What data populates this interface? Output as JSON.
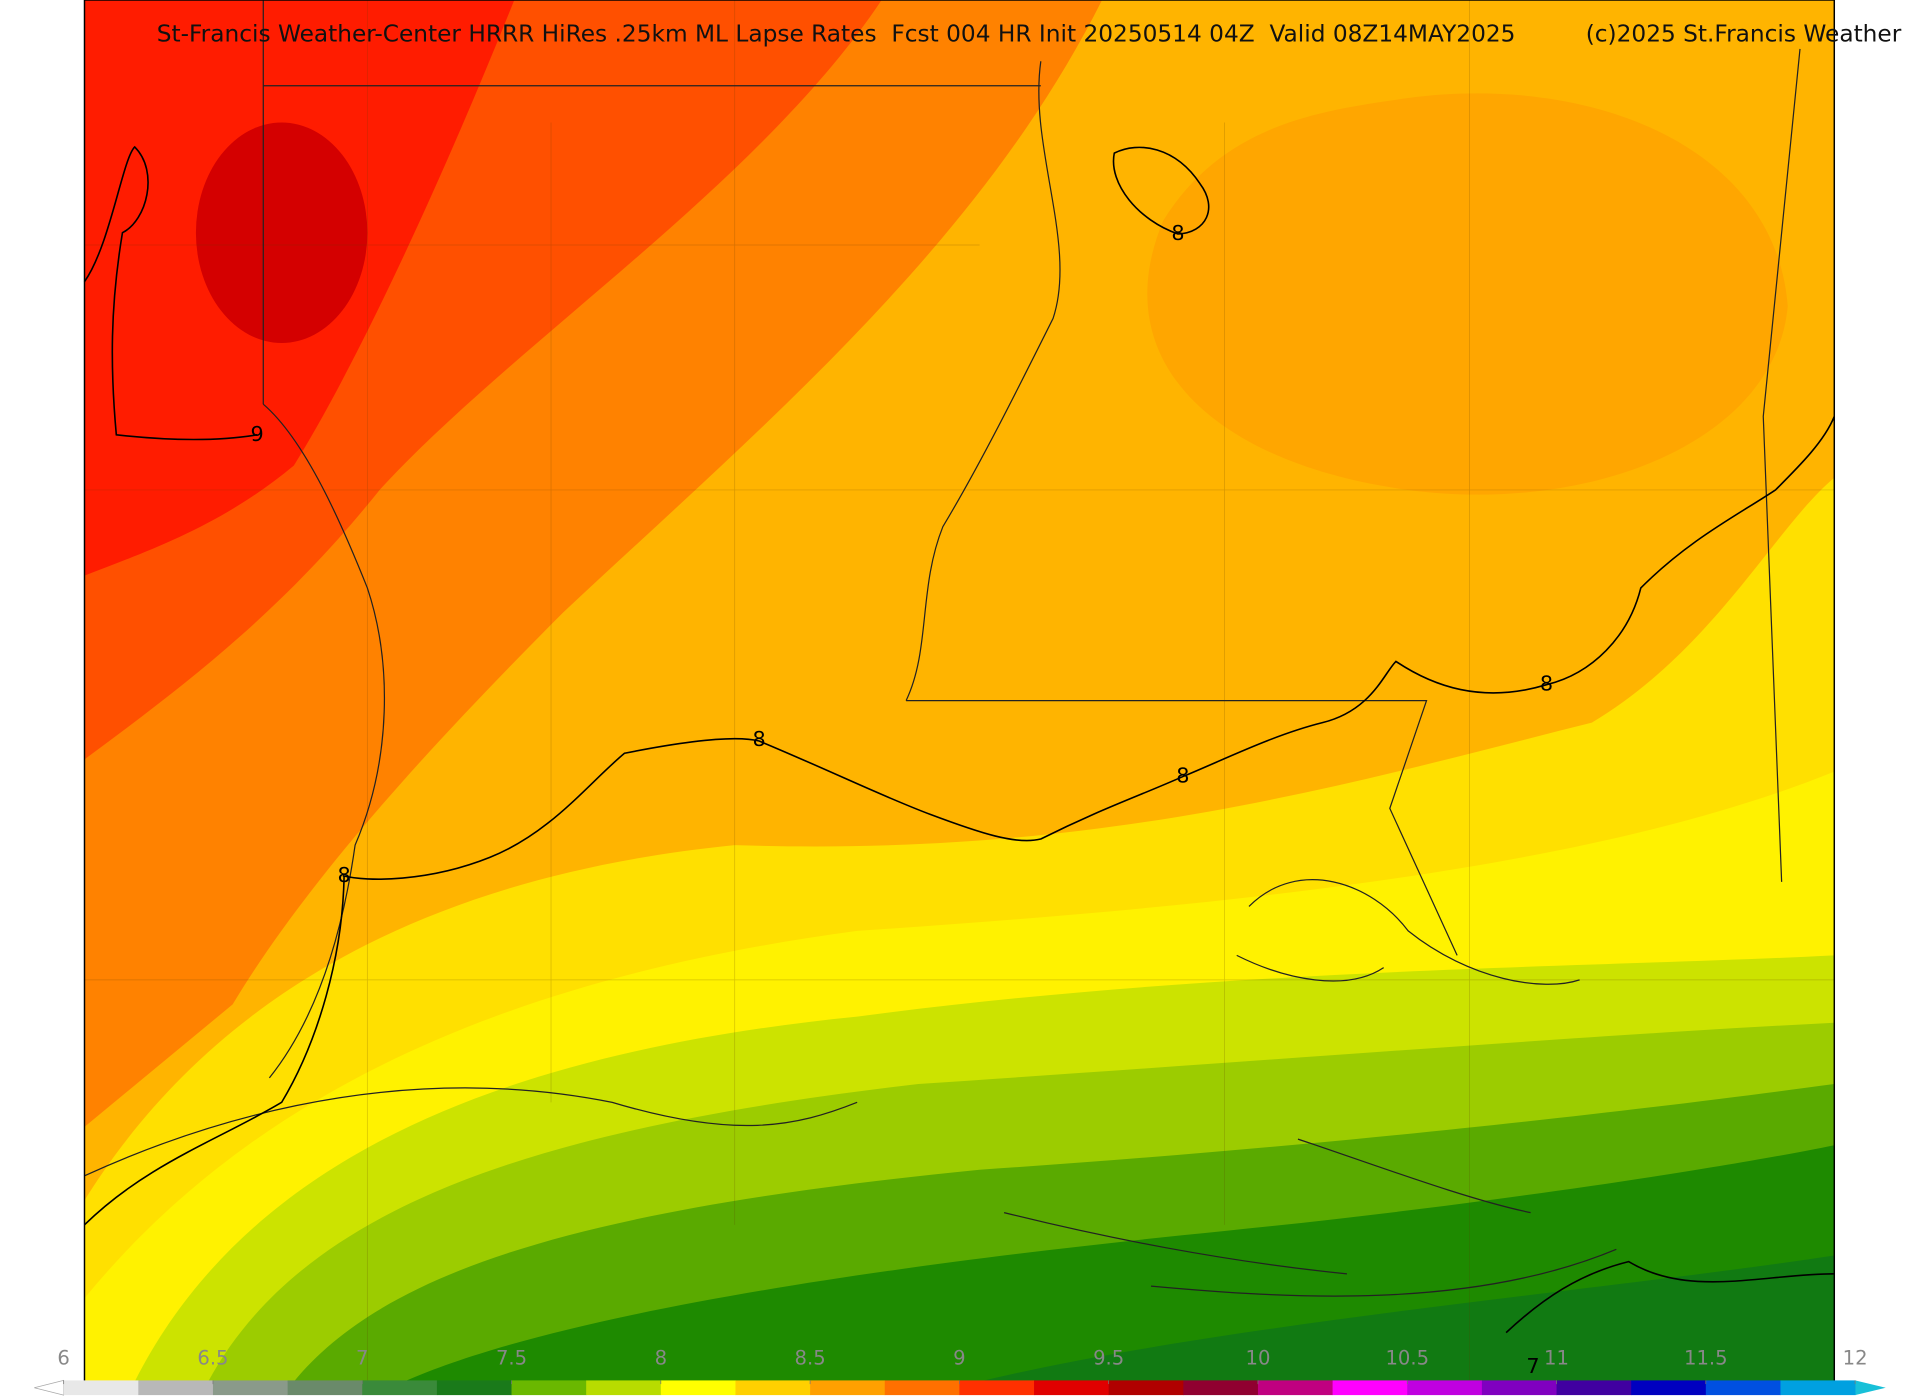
{
  "header": {
    "title": "St-Francis Weather-Center HRRR HiRes .25km ML Lapse Rates  Fcst 004 HR Init 20250514 04Z  Valid 08Z14MAY2025",
    "copyright": "(c)2025 St.Francis Weather"
  },
  "contour_labels": [
    8,
    9,
    8,
    8,
    8,
    8,
    7
  ],
  "colorbar": {
    "ticks": [
      6,
      6.5,
      7,
      7.5,
      8,
      8.5,
      9,
      9.5,
      10,
      10.5,
      11,
      11.5,
      12
    ],
    "colors": [
      "#e8e8e8",
      "#b8b8b8",
      "#8a9a8a",
      "#6a8a6a",
      "#3a8a3a",
      "#1a7a1a",
      "#6ab800",
      "#b8dc00",
      "#ffff00",
      "#ffd000",
      "#ffa000",
      "#ff7000",
      "#ff3000",
      "#e00000",
      "#b00000",
      "#900030",
      "#c00080",
      "#ff00ff",
      "#c000e0",
      "#8000c0",
      "#4000a0",
      "#0000c0",
      "#0050e0",
      "#00a0e0"
    ]
  }
}
